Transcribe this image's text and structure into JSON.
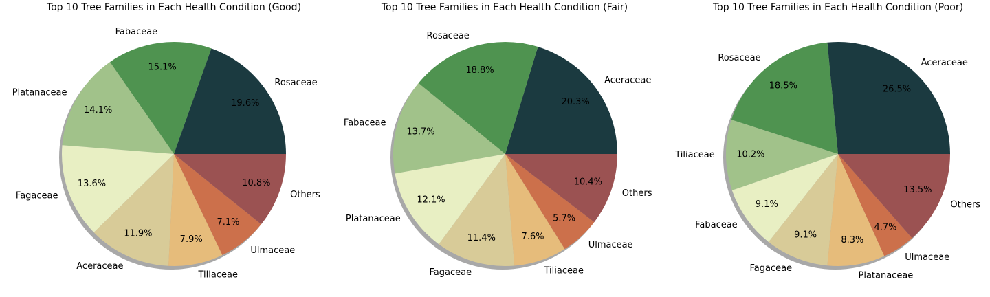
{
  "chart_data": [
    {
      "type": "pie",
      "title": "Top 10 Tree Families in Each Health Condition (Good)",
      "labels": [
        "Rosaceae",
        "Fabaceae",
        "Platanaceae",
        "Fagaceae",
        "Aceraceae",
        "Tiliaceae",
        "Ulmaceae",
        "Others"
      ],
      "values": [
        19.6,
        15.1,
        14.1,
        13.6,
        11.9,
        7.9,
        7.1,
        10.8
      ],
      "pct_labels": [
        "19.6%",
        "15.1%",
        "14.1%",
        "13.6%",
        "11.9%",
        "7.9%",
        "7.1%",
        "10.8%"
      ],
      "start_angle": 0,
      "direction": "counterclockwise",
      "shadow": true
    },
    {
      "type": "pie",
      "title": "Top 10 Tree Families in Each Health Condition (Fair)",
      "labels": [
        "Aceraceae",
        "Rosaceae",
        "Fabaceae",
        "Platanaceae",
        "Fagaceae",
        "Tiliaceae",
        "Ulmaceae",
        "Others"
      ],
      "values": [
        20.3,
        18.8,
        13.7,
        12.1,
        11.4,
        7.6,
        5.7,
        10.4
      ],
      "pct_labels": [
        "20.3%",
        "18.8%",
        "13.7%",
        "12.1%",
        "11.4%",
        "7.6%",
        "5.7%",
        "10.4%"
      ],
      "start_angle": 0,
      "direction": "counterclockwise",
      "shadow": true
    },
    {
      "type": "pie",
      "title": "Top 10 Tree Families in Each Health Condition (Poor)",
      "labels": [
        "Aceraceae",
        "Rosaceae",
        "Tiliaceae",
        "Fabaceae",
        "Fagaceae",
        "Platanaceae",
        "Ulmaceae",
        "Others"
      ],
      "values": [
        26.5,
        18.5,
        10.2,
        9.1,
        9.1,
        8.3,
        4.7,
        13.5
      ],
      "pct_labels": [
        "26.5%",
        "18.5%",
        "10.2%",
        "9.1%",
        "9.1%",
        "8.3%",
        "4.7%",
        "13.5%"
      ],
      "start_angle": 0,
      "direction": "counterclockwise",
      "shadow": true
    }
  ],
  "colors": [
    "#1b3a40",
    "#4f9350",
    "#a1c28a",
    "#e8efc3",
    "#d8cb98",
    "#e6bc7b",
    "#cc704b",
    "#9b5252"
  ],
  "shadow_color": "#999999"
}
